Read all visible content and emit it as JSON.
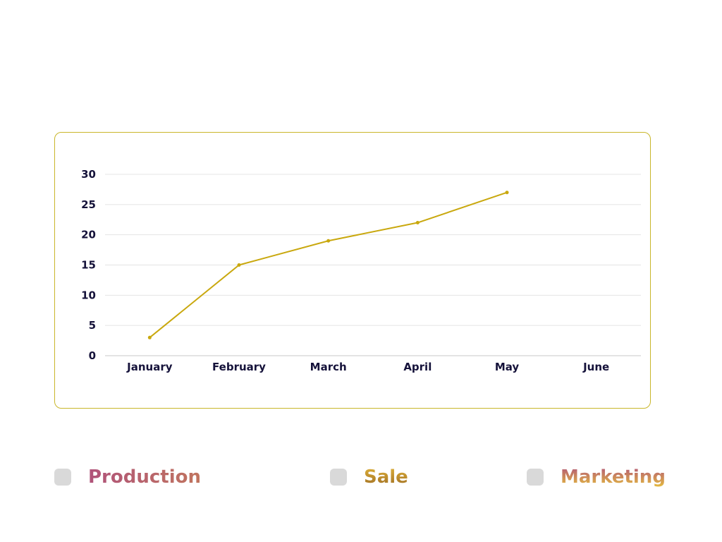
{
  "chart_data": {
    "type": "line",
    "categories": [
      "January",
      "February",
      "March",
      "April",
      "May",
      "June"
    ],
    "series": [
      {
        "color": "#c9a80e",
        "values": [
          3,
          15,
          19,
          22,
          27,
          null
        ]
      }
    ],
    "ylim": [
      0,
      30
    ],
    "yticks": [
      0,
      5,
      10,
      15,
      20,
      25,
      30
    ],
    "grid": true,
    "legend_placement": "bottom"
  },
  "legend": {
    "items": [
      {
        "label": "Production"
      },
      {
        "label": "Sale"
      },
      {
        "label": "Marketing"
      }
    ]
  },
  "colors": {
    "card_border": "#c9b62a",
    "line": "#c9a80e",
    "tick_text": "#15123a",
    "legend_box": "#d9d9d9"
  }
}
